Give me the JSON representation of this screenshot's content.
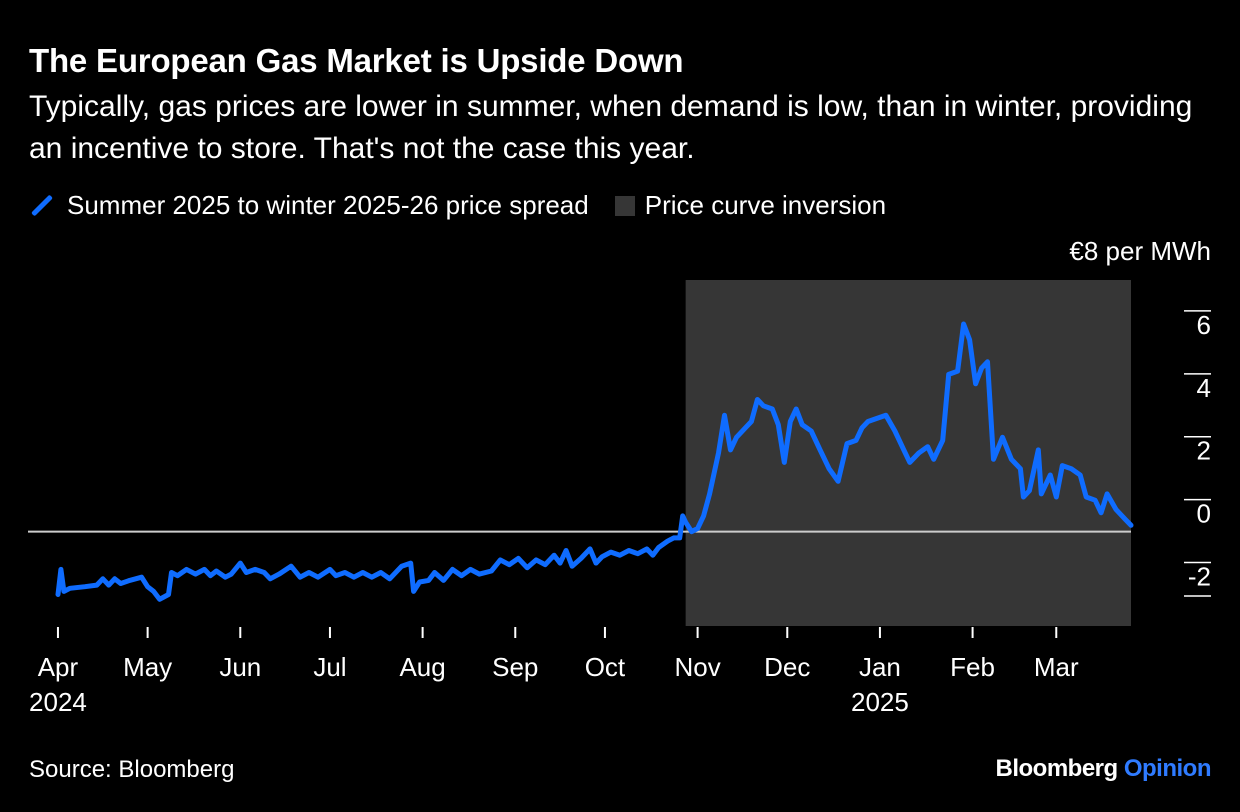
{
  "title": "The European Gas Market is Upside Down",
  "subtitle": "Typically, gas prices are lower in summer, when demand is low, than in winter, providing an incentive to store. That's not the case this year.",
  "legend": {
    "series_label": "Summer 2025 to winter 2025-26 price spread",
    "region_label": "Price curve inversion"
  },
  "colors": {
    "line": "#0f6cff",
    "shade": "#363636",
    "zero_line": "#cccccc",
    "brand_accent": "#2f7bff"
  },
  "source": "Source: Bloomberg",
  "brand": {
    "name": "Bloomberg",
    "suffix": "Opinion"
  },
  "chart_data": {
    "type": "line",
    "title": "The European Gas Market is Upside Down",
    "ylabel": "€8 per MWh",
    "ylim": [
      -3,
      8
    ],
    "yticks": [
      -2,
      0,
      2,
      4,
      6
    ],
    "xlim": [
      "2024-03-28",
      "2025-03-26"
    ],
    "x_ticks": [
      {
        "date": "2024-04-01",
        "label": "Apr",
        "year": "2024"
      },
      {
        "date": "2024-05-01",
        "label": "May",
        "year": ""
      },
      {
        "date": "2024-06-01",
        "label": "Jun",
        "year": ""
      },
      {
        "date": "2024-07-01",
        "label": "Jul",
        "year": ""
      },
      {
        "date": "2024-08-01",
        "label": "Aug",
        "year": ""
      },
      {
        "date": "2024-09-01",
        "label": "Sep",
        "year": ""
      },
      {
        "date": "2024-10-01",
        "label": "Oct",
        "year": ""
      },
      {
        "date": "2024-11-01",
        "label": "Nov",
        "year": ""
      },
      {
        "date": "2024-12-01",
        "label": "Dec",
        "year": ""
      },
      {
        "date": "2025-01-01",
        "label": "Jan",
        "year": "2025"
      },
      {
        "date": "2025-02-01",
        "label": "Feb",
        "year": ""
      },
      {
        "date": "2025-03-01",
        "label": "Mar",
        "year": ""
      }
    ],
    "shaded_region": {
      "start": "2024-10-28",
      "end": "2025-03-26"
    },
    "grid": false,
    "legend_position": "top-left",
    "series": [
      {
        "name": "Summer 2025 to winter 2025-26 price spread",
        "points": [
          [
            "2024-04-01",
            -2.0
          ],
          [
            "2024-04-02",
            -1.2
          ],
          [
            "2024-04-03",
            -1.9
          ],
          [
            "2024-04-05",
            -1.8
          ],
          [
            "2024-04-10",
            -1.75
          ],
          [
            "2024-04-14",
            -1.7
          ],
          [
            "2024-04-16",
            -1.5
          ],
          [
            "2024-04-18",
            -1.7
          ],
          [
            "2024-04-20",
            -1.5
          ],
          [
            "2024-04-22",
            -1.65
          ],
          [
            "2024-04-25",
            -1.55
          ],
          [
            "2024-04-29",
            -1.45
          ],
          [
            "2024-05-01",
            -1.75
          ],
          [
            "2024-05-03",
            -1.9
          ],
          [
            "2024-05-05",
            -2.15
          ],
          [
            "2024-05-08",
            -2.0
          ],
          [
            "2024-05-09",
            -1.3
          ],
          [
            "2024-05-11",
            -1.4
          ],
          [
            "2024-05-14",
            -1.2
          ],
          [
            "2024-05-17",
            -1.35
          ],
          [
            "2024-05-20",
            -1.2
          ],
          [
            "2024-05-22",
            -1.4
          ],
          [
            "2024-05-24",
            -1.25
          ],
          [
            "2024-05-27",
            -1.45
          ],
          [
            "2024-05-29",
            -1.35
          ],
          [
            "2024-06-01",
            -1.0
          ],
          [
            "2024-06-03",
            -1.3
          ],
          [
            "2024-06-06",
            -1.2
          ],
          [
            "2024-06-09",
            -1.3
          ],
          [
            "2024-06-11",
            -1.5
          ],
          [
            "2024-06-14",
            -1.35
          ],
          [
            "2024-06-18",
            -1.1
          ],
          [
            "2024-06-21",
            -1.45
          ],
          [
            "2024-06-24",
            -1.3
          ],
          [
            "2024-06-27",
            -1.45
          ],
          [
            "2024-07-01",
            -1.2
          ],
          [
            "2024-07-03",
            -1.4
          ],
          [
            "2024-07-06",
            -1.3
          ],
          [
            "2024-07-09",
            -1.45
          ],
          [
            "2024-07-12",
            -1.3
          ],
          [
            "2024-07-15",
            -1.45
          ],
          [
            "2024-07-18",
            -1.3
          ],
          [
            "2024-07-21",
            -1.5
          ],
          [
            "2024-07-25",
            -1.1
          ],
          [
            "2024-07-28",
            -1.0
          ],
          [
            "2024-07-29",
            -1.9
          ],
          [
            "2024-07-31",
            -1.6
          ],
          [
            "2024-08-03",
            -1.55
          ],
          [
            "2024-08-05",
            -1.3
          ],
          [
            "2024-08-08",
            -1.55
          ],
          [
            "2024-08-11",
            -1.2
          ],
          [
            "2024-08-14",
            -1.4
          ],
          [
            "2024-08-17",
            -1.2
          ],
          [
            "2024-08-20",
            -1.35
          ],
          [
            "2024-08-24",
            -1.25
          ],
          [
            "2024-08-27",
            -0.9
          ],
          [
            "2024-08-30",
            -1.05
          ],
          [
            "2024-09-02",
            -0.85
          ],
          [
            "2024-09-05",
            -1.15
          ],
          [
            "2024-09-08",
            -0.9
          ],
          [
            "2024-09-11",
            -1.05
          ],
          [
            "2024-09-14",
            -0.75
          ],
          [
            "2024-09-16",
            -1.0
          ],
          [
            "2024-09-18",
            -0.6
          ],
          [
            "2024-09-20",
            -1.1
          ],
          [
            "2024-09-23",
            -0.85
          ],
          [
            "2024-09-26",
            -0.55
          ],
          [
            "2024-09-28",
            -1.0
          ],
          [
            "2024-09-30",
            -0.8
          ],
          [
            "2024-10-03",
            -0.65
          ],
          [
            "2024-10-06",
            -0.75
          ],
          [
            "2024-10-09",
            -0.6
          ],
          [
            "2024-10-12",
            -0.7
          ],
          [
            "2024-10-15",
            -0.55
          ],
          [
            "2024-10-17",
            -0.75
          ],
          [
            "2024-10-19",
            -0.5
          ],
          [
            "2024-10-22",
            -0.3
          ],
          [
            "2024-10-24",
            -0.2
          ],
          [
            "2024-10-26",
            -0.2
          ],
          [
            "2024-10-27",
            0.5
          ],
          [
            "2024-10-28",
            0.3
          ],
          [
            "2024-10-30",
            0.0
          ],
          [
            "2024-11-01",
            0.1
          ],
          [
            "2024-11-03",
            0.5
          ],
          [
            "2024-11-05",
            1.2
          ],
          [
            "2024-11-08",
            2.5
          ],
          [
            "2024-11-10",
            3.7
          ],
          [
            "2024-11-12",
            2.6
          ],
          [
            "2024-11-14",
            3.0
          ],
          [
            "2024-11-17",
            3.3
          ],
          [
            "2024-11-19",
            3.5
          ],
          [
            "2024-11-21",
            4.2
          ],
          [
            "2024-11-23",
            4.0
          ],
          [
            "2024-11-26",
            3.9
          ],
          [
            "2024-11-28",
            3.4
          ],
          [
            "2024-11-30",
            2.2
          ],
          [
            "2024-12-02",
            3.5
          ],
          [
            "2024-12-04",
            3.9
          ],
          [
            "2024-12-06",
            3.4
          ],
          [
            "2024-12-09",
            3.2
          ],
          [
            "2024-12-12",
            2.6
          ],
          [
            "2024-12-15",
            2.0
          ],
          [
            "2024-12-18",
            1.6
          ],
          [
            "2024-12-21",
            2.8
          ],
          [
            "2024-12-24",
            2.9
          ],
          [
            "2024-12-26",
            3.3
          ],
          [
            "2024-12-28",
            3.5
          ],
          [
            "2024-12-31",
            3.6
          ],
          [
            "2025-01-03",
            3.7
          ],
          [
            "2025-01-06",
            3.2
          ],
          [
            "2025-01-09",
            2.6
          ],
          [
            "2025-01-11",
            2.2
          ],
          [
            "2025-01-14",
            2.5
          ],
          [
            "2025-01-17",
            2.7
          ],
          [
            "2025-01-19",
            2.3
          ],
          [
            "2025-01-22",
            2.9
          ],
          [
            "2025-01-24",
            5.0
          ],
          [
            "2025-01-27",
            5.1
          ],
          [
            "2025-01-29",
            6.6
          ],
          [
            "2025-01-31",
            6.1
          ],
          [
            "2025-02-02",
            4.7
          ],
          [
            "2025-02-04",
            5.2
          ],
          [
            "2025-02-06",
            5.4
          ],
          [
            "2025-02-08",
            2.3
          ],
          [
            "2025-02-11",
            3.0
          ],
          [
            "2025-02-14",
            2.3
          ],
          [
            "2025-02-17",
            2.0
          ],
          [
            "2025-02-18",
            1.1
          ],
          [
            "2025-02-20",
            1.3
          ],
          [
            "2025-02-23",
            2.6
          ],
          [
            "2025-02-24",
            1.2
          ],
          [
            "2025-02-27",
            1.8
          ],
          [
            "2025-03-01",
            1.1
          ],
          [
            "2025-03-03",
            2.1
          ],
          [
            "2025-03-06",
            2.0
          ],
          [
            "2025-03-09",
            1.8
          ],
          [
            "2025-03-11",
            1.1
          ],
          [
            "2025-03-14",
            1.0
          ],
          [
            "2025-03-16",
            0.6
          ],
          [
            "2025-03-18",
            1.2
          ],
          [
            "2025-03-21",
            0.7
          ],
          [
            "2025-03-24",
            0.4
          ],
          [
            "2025-03-26",
            0.2
          ]
        ]
      }
    ]
  }
}
